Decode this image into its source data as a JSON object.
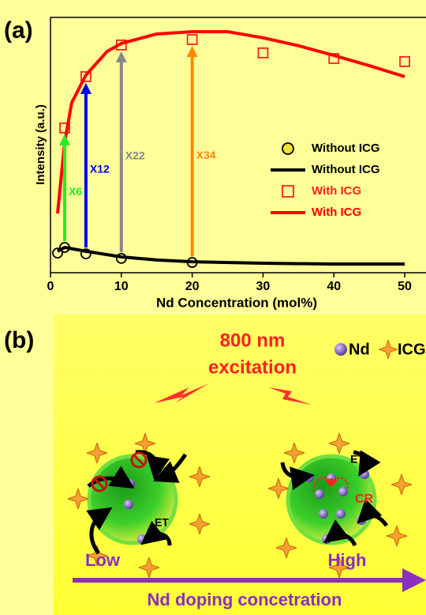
{
  "panel_a_label": "(a)",
  "chart_data": {
    "type": "line",
    "xlabel": "Nd Concentration (mol%)",
    "ylabel": "Intensity (a.u.)",
    "xlim": [
      0,
      53
    ],
    "xticks": [
      0,
      10,
      20,
      30,
      40,
      50
    ],
    "ylim": [
      0,
      100
    ],
    "legend": "center right",
    "series": [
      {
        "name": "Without ICG",
        "color": "#000000",
        "style": "marker",
        "marker": "circle",
        "x": [
          1,
          2,
          5,
          10,
          20
        ],
        "values": [
          7.7,
          9.9,
          7.4,
          5.6,
          4.0
        ]
      },
      {
        "name": "Without ICG",
        "color": "#000000",
        "style": "line",
        "x": [
          1,
          2,
          5,
          10,
          15,
          20,
          30,
          40,
          50
        ],
        "values": [
          8.4,
          9.9,
          8.4,
          6.2,
          5.0,
          4.3,
          3.7,
          3.4,
          3.4
        ]
      },
      {
        "name": "With ICG",
        "color": "#ff2020",
        "style": "marker",
        "marker": "square",
        "x": [
          2,
          5,
          10,
          20,
          30,
          40,
          50
        ],
        "values": [
          56.7,
          76.8,
          89.2,
          91.3,
          86.1,
          83.9,
          82.7
        ]
      },
      {
        "name": "With ICG",
        "color": "#ff0000",
        "style": "line",
        "x": [
          1,
          2,
          3,
          5,
          8,
          10,
          15,
          20,
          25,
          30,
          35,
          40,
          45,
          50
        ],
        "values": [
          23.2,
          51,
          66.6,
          77.4,
          86.7,
          89.8,
          93.5,
          94.4,
          94.4,
          92,
          88.9,
          85.1,
          81.1,
          76.8
        ]
      }
    ],
    "annotations": [
      {
        "text": "X6",
        "x": 2,
        "color": "#22ee22"
      },
      {
        "text": "X12",
        "x": 5,
        "color": "#0000ee"
      },
      {
        "text": "X22",
        "x": 10,
        "color": "#888888"
      },
      {
        "text": "X34",
        "x": 20,
        "color": "#ff8800"
      }
    ]
  },
  "diagram": {
    "panel_label": "(b)",
    "excitation": [
      "800 nm",
      "excitation"
    ],
    "legend": [
      "Nd",
      "ICG"
    ],
    "left_labels": [
      "ET"
    ],
    "right_labels": [
      "ET",
      "CR"
    ],
    "low": "Low",
    "high": "High",
    "axis_label": "Nd doping concetration"
  }
}
